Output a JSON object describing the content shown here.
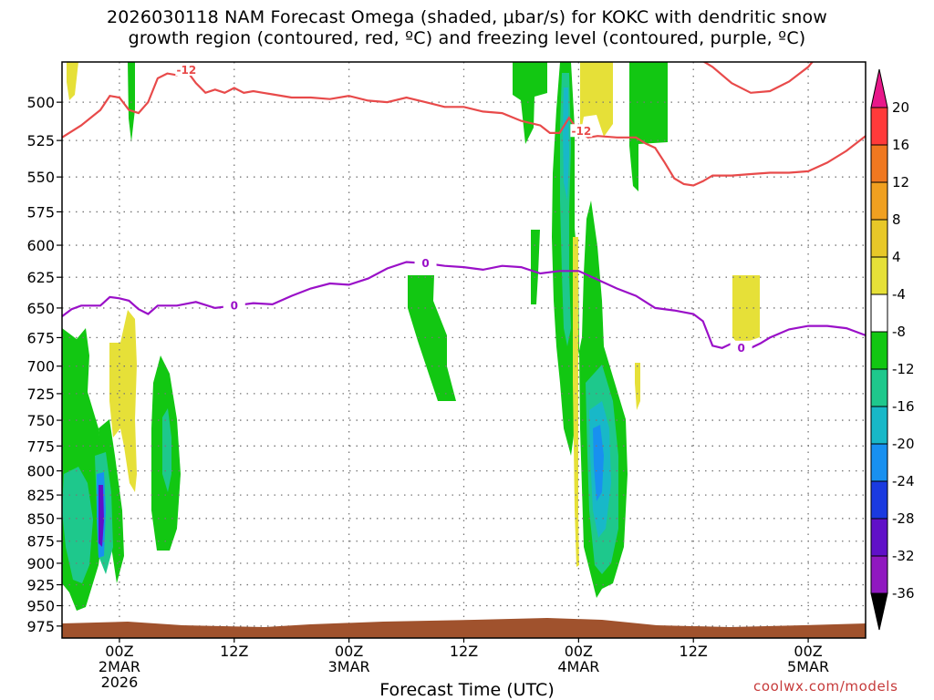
{
  "title": "2026030118 NAM Forecast Omega (shaded, μbar/s) for KOKC with dendritic snow growth region (contoured, red, ºC) and freezing level (contoured, purple, ºC)",
  "title_line1": "2026030118 NAM Forecast Omega (shaded, μbar/s) for KOKC with dendritic snow",
  "title_line2": "growth region (contoured, red, ºC) and freezing level (contoured, purple, ºC)",
  "credit": "coolwx.com/models",
  "chart_data": {
    "type": "heatmap",
    "title": "2026030118 NAM Forecast Omega (shaded, μbar/s) for KOKC with dendritic snow growth region (contoured, red, ºC) and freezing level (contoured, purple, ºC)",
    "xlabel": "Forecast Time (UTC)",
    "ylabel": "",
    "x_ticks": [
      {
        "hour": 6,
        "label": "00Z",
        "sub1": "2MAR",
        "sub2": "2026"
      },
      {
        "hour": 18,
        "label": "12Z",
        "sub1": "",
        "sub2": ""
      },
      {
        "hour": 30,
        "label": "00Z",
        "sub1": "3MAR",
        "sub2": ""
      },
      {
        "hour": 42,
        "label": "12Z",
        "sub1": "",
        "sub2": ""
      },
      {
        "hour": 54,
        "label": "00Z",
        "sub1": "4MAR",
        "sub2": ""
      },
      {
        "hour": 66,
        "label": "12Z",
        "sub1": "",
        "sub2": ""
      },
      {
        "hour": 78,
        "label": "00Z",
        "sub1": "5MAR",
        "sub2": ""
      }
    ],
    "x_range_hours": [
      0,
      84
    ],
    "y_ticks": [
      500,
      525,
      550,
      575,
      600,
      625,
      650,
      675,
      700,
      725,
      750,
      775,
      800,
      825,
      850,
      875,
      900,
      925,
      950,
      975
    ],
    "y_range_hpa": [
      475,
      990
    ],
    "y_scale": "log",
    "grid": true,
    "colorbar": {
      "levels": [
        20,
        16,
        12,
        8,
        4,
        -4,
        -8,
        -12,
        -16,
        -20,
        -24,
        -28,
        -32,
        -36
      ],
      "colors": [
        "#ff3a3a",
        "#f07820",
        "#f0a020",
        "#e8c828",
        "#e6e038",
        "#ffffff",
        "#12c712",
        "#1ec88c",
        "#18b8c8",
        "#1890f0",
        "#1a3ae0",
        "#6010c8",
        "#9018c0",
        "#a0a0a0"
      ],
      "top_color": "#e8188a",
      "bottom_color": "#000000"
    },
    "contours": [
      {
        "color": "#e84a4a",
        "label": "-12",
        "points": [
          [
            0,
            523
          ],
          [
            2,
            515
          ],
          [
            4,
            505
          ],
          [
            5,
            496
          ],
          [
            6,
            497
          ],
          [
            7,
            505
          ],
          [
            8,
            507
          ],
          [
            9,
            500
          ],
          [
            10,
            485
          ],
          [
            11,
            482
          ],
          [
            12,
            483
          ],
          [
            13,
            480
          ],
          [
            14,
            488
          ],
          [
            15,
            494
          ],
          [
            16,
            492
          ],
          [
            17,
            494
          ],
          [
            18,
            491
          ],
          [
            19,
            494
          ],
          [
            20,
            493
          ],
          [
            21,
            494
          ],
          [
            22,
            495
          ],
          [
            24,
            497
          ],
          [
            26,
            497
          ],
          [
            28,
            498
          ],
          [
            30,
            496
          ],
          [
            32,
            499
          ],
          [
            34,
            500
          ],
          [
            36,
            497
          ],
          [
            38,
            500
          ],
          [
            40,
            503
          ],
          [
            42,
            503
          ],
          [
            44,
            506
          ],
          [
            46,
            507
          ],
          [
            48,
            512
          ],
          [
            50,
            515
          ],
          [
            51,
            520
          ],
          [
            52,
            520
          ],
          [
            53,
            510
          ],
          [
            54,
            519
          ],
          [
            55,
            523
          ],
          [
            56,
            522
          ],
          [
            58,
            523
          ],
          [
            60,
            523
          ],
          [
            61,
            527
          ],
          [
            62,
            530
          ],
          [
            63,
            540
          ],
          [
            64,
            551
          ],
          [
            65,
            555
          ],
          [
            66,
            556
          ],
          [
            67,
            553
          ],
          [
            68,
            549
          ],
          [
            70,
            549
          ],
          [
            72,
            548
          ],
          [
            74,
            547
          ],
          [
            76,
            547
          ],
          [
            78,
            546
          ],
          [
            80,
            540
          ],
          [
            82,
            532
          ],
          [
            84,
            522
          ]
        ]
      },
      {
        "color": "#e84a4a",
        "label": "",
        "points": [
          [
            66,
            471
          ],
          [
            68,
            478
          ],
          [
            70,
            488
          ],
          [
            72,
            494
          ],
          [
            74,
            493
          ],
          [
            76,
            487
          ],
          [
            78,
            478
          ],
          [
            79,
            471
          ]
        ]
      },
      {
        "color": "#9a10c8",
        "label": "0",
        "points": [
          [
            0,
            657
          ],
          [
            1,
            651
          ],
          [
            2,
            648
          ],
          [
            3,
            648
          ],
          [
            4,
            648
          ],
          [
            5,
            641
          ],
          [
            6,
            642
          ],
          [
            7,
            644
          ],
          [
            8,
            651
          ],
          [
            9,
            655
          ],
          [
            10,
            648
          ],
          [
            12,
            648
          ],
          [
            14,
            645
          ],
          [
            16,
            650
          ],
          [
            18,
            648
          ],
          [
            20,
            646
          ],
          [
            22,
            647
          ],
          [
            24,
            640
          ],
          [
            26,
            634
          ],
          [
            28,
            630
          ],
          [
            30,
            631
          ],
          [
            32,
            626
          ],
          [
            34,
            618
          ],
          [
            36,
            613
          ],
          [
            38,
            614
          ],
          [
            40,
            616
          ],
          [
            42,
            617
          ],
          [
            44,
            619
          ],
          [
            46,
            616
          ],
          [
            48,
            617
          ],
          [
            50,
            622
          ],
          [
            52,
            620
          ],
          [
            54,
            620
          ],
          [
            56,
            627
          ],
          [
            58,
            634
          ],
          [
            60,
            640
          ],
          [
            62,
            650
          ],
          [
            64,
            652
          ],
          [
            66,
            655
          ],
          [
            67,
            661
          ],
          [
            68,
            682
          ],
          [
            69,
            684
          ],
          [
            70,
            680
          ],
          [
            71,
            684
          ],
          [
            72,
            684
          ],
          [
            73,
            680
          ],
          [
            74,
            675
          ],
          [
            76,
            668
          ],
          [
            78,
            665
          ],
          [
            80,
            665
          ],
          [
            82,
            667
          ],
          [
            84,
            673
          ]
        ]
      }
    ]
  }
}
